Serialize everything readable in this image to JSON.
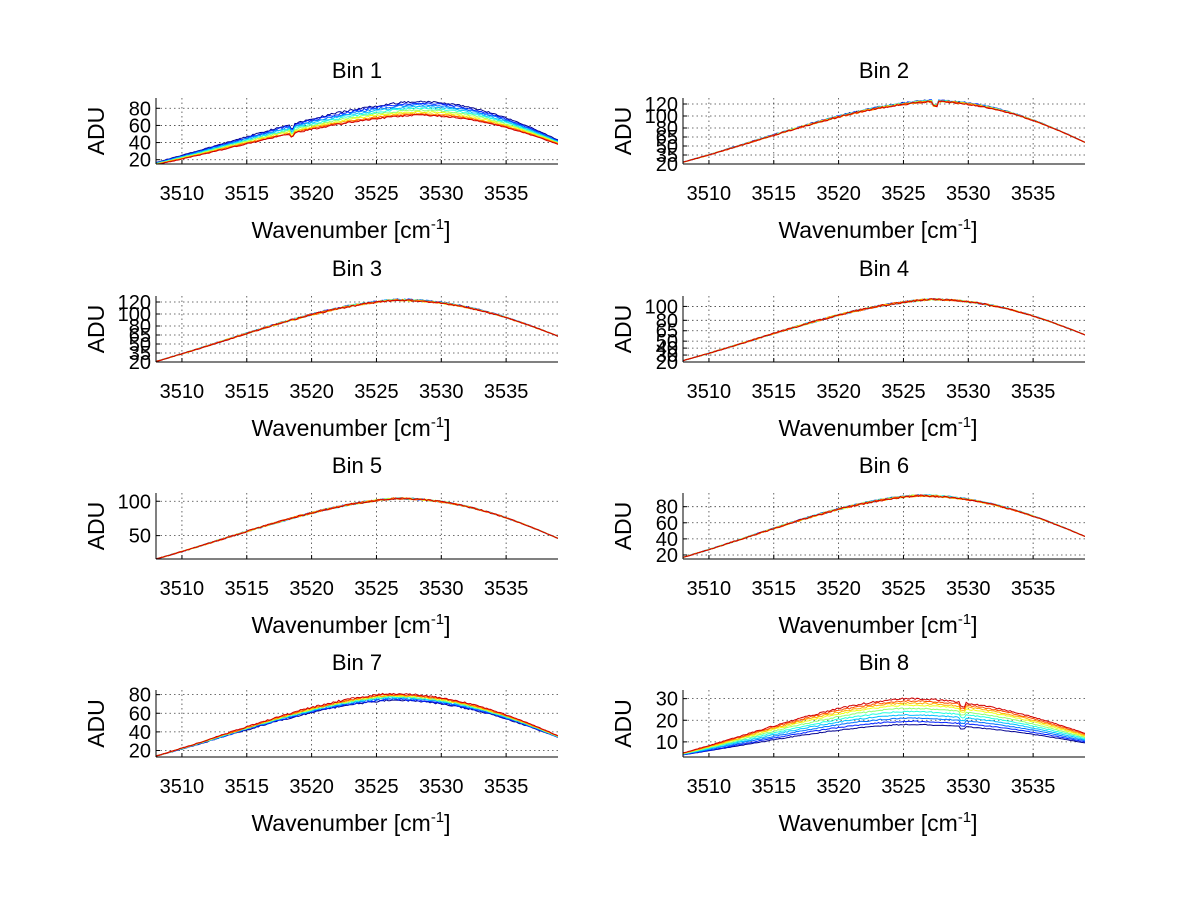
{
  "chart_data": [
    {
      "type": "line",
      "title": "Bin 1",
      "xlabel_text": "Wavenumber [cm",
      "xlabel_sup": "-1",
      "xlabel_close": "]",
      "ylabel": "ADU",
      "xlim": [
        3508,
        3539
      ],
      "ylim": [
        15,
        92
      ],
      "xticks": [
        "3510",
        "3515",
        "3520",
        "3525",
        "3530",
        "3535"
      ],
      "yticks": [
        "20",
        "40",
        "60",
        "80"
      ],
      "series_summary": {
        "count": 10,
        "start_values": [
          17,
          16.5,
          16,
          15.8,
          15.5,
          15.3,
          15,
          14.8,
          14.5,
          14.2
        ],
        "peak_values": [
          88,
          86,
          84,
          82,
          80,
          78,
          76,
          74,
          73,
          72
        ],
        "peak_x": 3528,
        "end_values": [
          43,
          42,
          41.5,
          41,
          40.5,
          40,
          39.5,
          39,
          38.5,
          38
        ],
        "dip_x": 3518.5
      }
    },
    {
      "type": "line",
      "title": "Bin 2",
      "xlabel_text": "Wavenumber [cm",
      "xlabel_sup": "-1",
      "xlabel_close": "]",
      "ylabel": "ADU",
      "xlim": [
        3508,
        3539
      ],
      "ylim": [
        20,
        130
      ],
      "xticks": [
        "3510",
        "3515",
        "3520",
        "3525",
        "3530",
        "3535"
      ],
      "yticks": [
        "20",
        "35",
        "50",
        "65",
        "80",
        "100",
        "120"
      ],
      "series_summary": {
        "count": 10,
        "start_values": [
          23,
          23,
          23,
          23,
          23,
          23,
          23,
          23,
          23,
          23
        ],
        "peak_values": [
          126,
          126,
          125.5,
          125.5,
          125,
          125,
          124.5,
          124.5,
          124,
          124
        ],
        "peak_x": 3527,
        "end_values": [
          56,
          56,
          56,
          56,
          56,
          56,
          56,
          56,
          56,
          56
        ],
        "dip_x": 3527.5
      }
    },
    {
      "type": "line",
      "title": "Bin 3",
      "xlabel_text": "Wavenumber [cm",
      "xlabel_sup": "-1",
      "xlabel_close": "]",
      "ylabel": "ADU",
      "xlim": [
        3508,
        3539
      ],
      "ylim": [
        20,
        130
      ],
      "xticks": [
        "3510",
        "3515",
        "3520",
        "3525",
        "3530",
        "3535"
      ],
      "yticks": [
        "20",
        "35",
        "50",
        "65",
        "80",
        "100",
        "120"
      ],
      "series_summary": {
        "count": 10,
        "start_values": [
          21,
          21,
          21,
          21,
          21,
          21,
          21,
          21,
          21,
          21
        ],
        "peak_values": [
          124,
          124,
          124,
          123.5,
          123.5,
          123.5,
          123,
          123,
          123,
          123
        ],
        "peak_x": 3526.5,
        "end_values": [
          63,
          63,
          63,
          63,
          63,
          63,
          63,
          63,
          63,
          63
        ],
        "dip_x": null
      }
    },
    {
      "type": "line",
      "title": "Bin 4",
      "xlabel_text": "Wavenumber [cm",
      "xlabel_sup": "-1",
      "xlabel_close": "]",
      "ylabel": "ADU",
      "xlim": [
        3508,
        3539
      ],
      "ylim": [
        20,
        115
      ],
      "xticks": [
        "3510",
        "3515",
        "3520",
        "3525",
        "3530",
        "3535"
      ],
      "yticks": [
        "20",
        "30",
        "40",
        "50",
        "65",
        "80",
        "100"
      ],
      "series_summary": {
        "count": 10,
        "start_values": [
          22,
          22,
          22,
          22,
          22,
          22,
          22,
          22,
          22,
          22
        ],
        "peak_values": [
          110,
          110,
          110,
          110,
          110,
          110,
          110,
          110,
          110,
          110
        ],
        "peak_x": 3527,
        "end_values": [
          59,
          59,
          59,
          59,
          59,
          59,
          59,
          59,
          59,
          59
        ],
        "dip_x": null
      }
    },
    {
      "type": "line",
      "title": "Bin 5",
      "xlabel_text": "Wavenumber [cm",
      "xlabel_sup": "-1",
      "xlabel_close": "]",
      "ylabel": "ADU",
      "xlim": [
        3508,
        3539
      ],
      "ylim": [
        16,
        112
      ],
      "xticks": [
        "3510",
        "3515",
        "3520",
        "3525",
        "3530",
        "3535"
      ],
      "yticks": [
        "50",
        "100"
      ],
      "series_summary": {
        "count": 10,
        "start_values": [
          16,
          16,
          16,
          16,
          16,
          16,
          16,
          16,
          16,
          16
        ],
        "peak_values": [
          104,
          104,
          104,
          104,
          104,
          104,
          104,
          104,
          104,
          104
        ],
        "peak_x": 3526.5,
        "end_values": [
          46,
          46,
          46,
          46,
          46,
          46,
          46,
          46,
          46,
          46
        ],
        "dip_x": null
      }
    },
    {
      "type": "line",
      "title": "Bin 6",
      "xlabel_text": "Wavenumber [cm",
      "xlabel_sup": "-1",
      "xlabel_close": "]",
      "ylabel": "ADU",
      "xlim": [
        3508,
        3539
      ],
      "ylim": [
        15,
        97
      ],
      "xticks": [
        "3510",
        "3515",
        "3520",
        "3525",
        "3530",
        "3535"
      ],
      "yticks": [
        "20",
        "40",
        "60",
        "80"
      ],
      "series_summary": {
        "count": 10,
        "start_values": [
          17,
          17,
          17,
          17,
          17,
          17,
          17,
          17,
          17,
          17
        ],
        "peak_values": [
          94,
          94,
          94,
          94,
          94,
          94,
          93.5,
          93.5,
          93.5,
          93.5
        ],
        "peak_x": 3526,
        "end_values": [
          43,
          43,
          43,
          43,
          43,
          43,
          43,
          43,
          43,
          43
        ],
        "dip_x": null
      }
    },
    {
      "type": "line",
      "title": "Bin 7",
      "xlabel_text": "Wavenumber [cm",
      "xlabel_sup": "-1",
      "xlabel_close": "]",
      "ylabel": "ADU",
      "xlim": [
        3508,
        3539
      ],
      "ylim": [
        13,
        85
      ],
      "xticks": [
        "3510",
        "3515",
        "3520",
        "3525",
        "3530",
        "3535"
      ],
      "yticks": [
        "20",
        "40",
        "60",
        "80"
      ],
      "series_summary": {
        "count": 10,
        "start_values": [
          14,
          14,
          14,
          14,
          14,
          14,
          14,
          14,
          14,
          14
        ],
        "peak_values": [
          74,
          75,
          76,
          77,
          77.5,
          78,
          79,
          79.5,
          80,
          81
        ],
        "peak_x": 3526,
        "end_values": [
          34,
          34.2,
          34.4,
          34.6,
          34.8,
          35,
          35.2,
          35.4,
          35.6,
          35.8
        ],
        "dip_x": null
      }
    },
    {
      "type": "line",
      "title": "Bin 8",
      "xlabel_text": "Wavenumber [cm",
      "xlabel_sup": "-1",
      "xlabel_close": "]",
      "ylabel": "ADU",
      "xlim": [
        3508,
        3539
      ],
      "ylim": [
        3,
        34
      ],
      "xticks": [
        "3510",
        "3515",
        "3520",
        "3525",
        "3530",
        "3535"
      ],
      "yticks": [
        "10",
        "20",
        "30"
      ],
      "series_summary": {
        "count": 10,
        "start_values": [
          4,
          4,
          4.2,
          4.3,
          4.4,
          4.5,
          4.6,
          4.7,
          4.8,
          4.9
        ],
        "peak_values": [
          18,
          19.5,
          21,
          22.5,
          24,
          25.5,
          27,
          28,
          29,
          30
        ],
        "peak_x": 3525,
        "end_values": [
          9.5,
          10,
          10.5,
          11,
          11.5,
          12,
          12.5,
          13,
          13.5,
          14
        ],
        "dip_x": 3529.5
      }
    }
  ],
  "series_colors": [
    "#00008f",
    "#0020ff",
    "#0070ff",
    "#00bfff",
    "#20ffdf",
    "#8fff70",
    "#efff10",
    "#ffaf00",
    "#ff5000",
    "#d00000"
  ]
}
